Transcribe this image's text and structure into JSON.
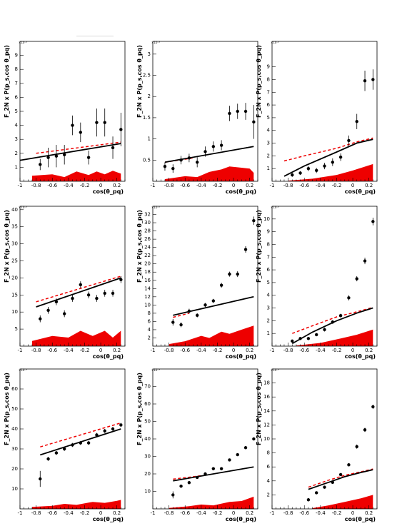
{
  "chart_data": [
    {
      "type": "scatter",
      "xlabel": "cos(θ_pq)",
      "ylabel": "F_2N x P(p_s,cos θ_pq)",
      "y_exponent": "×10⁻³",
      "xlim": [
        -1,
        0.3
      ],
      "ylim": [
        0,
        10
      ],
      "xticks": [
        "-1",
        "-0.8",
        "-0.6",
        "-0.4",
        "-0.2",
        "0",
        "0.2"
      ],
      "yticks": [
        "1",
        "2",
        "3",
        "4",
        "5",
        "6",
        "7",
        "8",
        "9"
      ],
      "data": {
        "x": [
          -0.75,
          -0.65,
          -0.55,
          -0.45,
          -0.35,
          -0.25,
          -0.15,
          -0.05,
          0.05,
          0.15,
          0.25
        ],
        "y": [
          1.2,
          1.7,
          1.8,
          1.9,
          4.0,
          3.5,
          1.7,
          4.2,
          4.2,
          2.4,
          3.7
        ],
        "err": [
          0.4,
          0.7,
          0.8,
          0.7,
          0.7,
          0.7,
          0.5,
          1.0,
          1.0,
          0.8,
          1.2
        ]
      },
      "solid_curve": [
        [
          -1.0,
          1.5
        ],
        [
          0.25,
          2.7
        ]
      ],
      "dashed_curve": [
        [
          -0.8,
          2.0
        ],
        [
          0.25,
          2.8
        ]
      ],
      "band": [
        [
          -0.85,
          0.4
        ],
        [
          -0.6,
          0.5
        ],
        [
          -0.45,
          0.3
        ],
        [
          -0.3,
          0.7
        ],
        [
          -0.15,
          0.45
        ],
        [
          -0.05,
          0.7
        ],
        [
          0.05,
          0.5
        ],
        [
          0.15,
          0.75
        ],
        [
          0.25,
          0.55
        ]
      ]
    },
    {
      "type": "scatter",
      "xlabel": "cos(θ_pq)",
      "ylabel": "F_2N x P(p_s,cos θ_pq)",
      "y_exponent": "×10⁻³",
      "xlim": [
        -1,
        0.3
      ],
      "ylim": [
        0,
        3.3
      ],
      "xticks": [
        "-1",
        "-0.8",
        "-0.6",
        "-0.4",
        "-0.2",
        "0",
        "0.2"
      ],
      "yticks": [
        "0.5",
        "1",
        "1.5",
        "2",
        "2.5",
        "3"
      ],
      "data": {
        "x": [
          -0.85,
          -0.75,
          -0.65,
          -0.55,
          -0.45,
          -0.35,
          -0.25,
          -0.15,
          -0.05,
          0.05,
          0.15,
          0.25
        ],
        "y": [
          0.35,
          0.3,
          0.5,
          0.55,
          0.45,
          0.7,
          0.82,
          0.85,
          1.6,
          1.65,
          1.65,
          1.4
        ],
        "err": [
          0.1,
          0.1,
          0.1,
          0.1,
          0.12,
          0.12,
          0.12,
          0.12,
          0.18,
          0.18,
          0.2,
          0.4
        ]
      },
      "solid_curve": [
        [
          -0.85,
          0.45
        ],
        [
          0.25,
          0.82
        ]
      ],
      "dashed_curve": [
        [
          -0.85,
          0.45
        ],
        [
          -0.5,
          0.55
        ]
      ],
      "band": [
        [
          -0.85,
          0.05
        ],
        [
          -0.6,
          0.12
        ],
        [
          -0.45,
          0.1
        ],
        [
          -0.3,
          0.22
        ],
        [
          -0.15,
          0.28
        ],
        [
          -0.05,
          0.35
        ],
        [
          0.1,
          0.32
        ],
        [
          0.2,
          0.3
        ],
        [
          0.25,
          0.2
        ]
      ]
    },
    {
      "type": "scatter",
      "xlabel": "cos(θ_pq)",
      "ylabel": "F_2N x P(p_s,cos θ_pq)",
      "y_exponent": "×10⁻³",
      "xlim": [
        -1,
        0.3
      ],
      "ylim": [
        0,
        11
      ],
      "xticks": [
        "-1",
        "-0.8",
        "-0.6",
        "-0.4",
        "-0.2",
        "0",
        "0.2"
      ],
      "yticks": [
        "1",
        "2",
        "3",
        "4",
        "5",
        "6",
        "7",
        "8",
        "9"
      ],
      "data": {
        "x": [
          -0.75,
          -0.65,
          -0.55,
          -0.45,
          -0.35,
          -0.25,
          -0.15,
          -0.05,
          0.05,
          0.15,
          0.25
        ],
        "y": [
          0.5,
          0.65,
          1.0,
          0.85,
          1.2,
          1.5,
          1.9,
          3.2,
          4.7,
          7.9,
          8.0
        ],
        "err": [
          0.15,
          0.15,
          0.2,
          0.2,
          0.25,
          0.3,
          0.3,
          0.4,
          0.6,
          0.8,
          0.8
        ]
      },
      "solid_curve": [
        [
          -0.85,
          0.4
        ],
        [
          -0.6,
          1.2
        ],
        [
          -0.2,
          2.3
        ],
        [
          0.05,
          3.0
        ],
        [
          0.25,
          3.3
        ]
      ],
      "dashed_curve": [
        [
          -0.85,
          1.6
        ],
        [
          -0.6,
          2.0
        ],
        [
          -0.2,
          2.6
        ],
        [
          0.05,
          3.1
        ],
        [
          0.25,
          3.4
        ]
      ],
      "band": [
        [
          -0.8,
          0.05
        ],
        [
          -0.5,
          0.2
        ],
        [
          -0.2,
          0.5
        ],
        [
          0.0,
          0.85
        ],
        [
          0.15,
          1.15
        ],
        [
          0.25,
          1.35
        ]
      ]
    },
    {
      "type": "scatter",
      "xlabel": "cos(θ_pq)",
      "ylabel": "F_2N x P(p_s,cos θ_pq)",
      "y_exponent": "×10⁻⁶",
      "xlim": [
        -1,
        0.3
      ],
      "ylim": [
        0,
        41
      ],
      "xticks": [
        "-1",
        "-0.8",
        "-0.6",
        "-0.4",
        "-0.2",
        "0",
        "0.2"
      ],
      "yticks": [
        "5",
        "10",
        "15",
        "20",
        "25",
        "30",
        "35",
        "40"
      ],
      "data": {
        "x": [
          -0.75,
          -0.65,
          -0.55,
          -0.45,
          -0.35,
          -0.25,
          -0.15,
          -0.05,
          0.05,
          0.15,
          0.25
        ],
        "y": [
          8,
          10.5,
          13,
          9.5,
          14,
          18,
          15,
          14,
          15.5,
          15.5,
          19.5
        ],
        "err": [
          1.0,
          1.0,
          1.0,
          1.0,
          1.0,
          1.0,
          1.0,
          1.0,
          1.0,
          1.0,
          1.0
        ]
      },
      "solid_curve": [
        [
          -0.8,
          11.5
        ],
        [
          0.25,
          20
        ]
      ],
      "dashed_curve": [
        [
          -0.8,
          13
        ],
        [
          0.25,
          20.5
        ]
      ],
      "band": [
        [
          -0.85,
          1.5
        ],
        [
          -0.6,
          3
        ],
        [
          -0.4,
          2.5
        ],
        [
          -0.25,
          4.5
        ],
        [
          -0.1,
          3
        ],
        [
          0.05,
          4.5
        ],
        [
          0.15,
          2.5
        ],
        [
          0.25,
          4.5
        ]
      ]
    },
    {
      "type": "scatter",
      "xlabel": "cos(θ_pq)",
      "ylabel": "F_2N x P(p_s,cos θ_pq)",
      "y_exponent": "×10⁻⁶",
      "xlim": [
        -1,
        0.3
      ],
      "ylim": [
        0,
        34
      ],
      "xticks": [
        "-1",
        "-0.8",
        "-0.6",
        "-0.4",
        "-0.2",
        "0",
        "0.2"
      ],
      "yticks": [
        "2",
        "4",
        "6",
        "8",
        "10",
        "12",
        "14",
        "16",
        "18",
        "20",
        "22",
        "24",
        "26",
        "28",
        "30",
        "32"
      ],
      "data": {
        "x": [
          -0.75,
          -0.65,
          -0.55,
          -0.45,
          -0.35,
          -0.25,
          -0.15,
          -0.05,
          0.05,
          0.15,
          0.25
        ],
        "y": [
          5.8,
          5.2,
          8.5,
          7.5,
          10,
          11,
          14.8,
          17.5,
          17.5,
          23.5,
          30.5
        ],
        "err": [
          0.8,
          0.6,
          0.6,
          0.5,
          0.5,
          0.5,
          0.6,
          0.6,
          0.7,
          0.8,
          1.0
        ]
      },
      "solid_curve": [
        [
          -0.75,
          7.5
        ],
        [
          0.25,
          12
        ]
      ],
      "dashed_curve": [
        [
          -0.75,
          7
        ],
        [
          -0.55,
          8
        ]
      ],
      "band": [
        [
          -0.8,
          0.5
        ],
        [
          -0.6,
          1.2
        ],
        [
          -0.4,
          2.5
        ],
        [
          -0.3,
          2
        ],
        [
          -0.15,
          3.5
        ],
        [
          -0.05,
          3
        ],
        [
          0.1,
          4
        ],
        [
          0.25,
          5
        ]
      ]
    },
    {
      "type": "scatter",
      "xlabel": "cos(θ_pq)",
      "ylabel": "F_2N x P(p_s,cos θ_pq)",
      "y_exponent": "×10⁻⁶",
      "xlim": [
        -1,
        0.3
      ],
      "ylim": [
        0,
        11
      ],
      "xticks": [
        "-1",
        "-0.8",
        "-0.6",
        "-0.4",
        "-0.2",
        "0",
        "0.2"
      ],
      "yticks": [
        "1",
        "2",
        "3",
        "4",
        "5",
        "6",
        "7",
        "8",
        "9",
        "10"
      ],
      "data": {
        "x": [
          -0.75,
          -0.65,
          -0.55,
          -0.45,
          -0.35,
          -0.25,
          -0.15,
          -0.05,
          0.05,
          0.15,
          0.25
        ],
        "y": [
          0.4,
          0.6,
          0.6,
          0.9,
          1.3,
          1.9,
          2.4,
          3.8,
          5.3,
          6.7,
          9.8
        ],
        "err": [
          0.1,
          0.1,
          0.1,
          0.12,
          0.15,
          0.15,
          0.15,
          0.2,
          0.2,
          0.25,
          0.3
        ]
      },
      "solid_curve": [
        [
          -0.75,
          0.2
        ],
        [
          -0.5,
          1.1
        ],
        [
          -0.2,
          2.0
        ],
        [
          0.05,
          2.6
        ],
        [
          0.25,
          3.0
        ]
      ],
      "dashed_curve": [
        [
          -0.75,
          1.0
        ],
        [
          -0.5,
          1.6
        ],
        [
          -0.2,
          2.3
        ],
        [
          0.05,
          2.7
        ],
        [
          0.25,
          3.05
        ]
      ],
      "band": [
        [
          -0.7,
          0.05
        ],
        [
          -0.4,
          0.25
        ],
        [
          -0.15,
          0.6
        ],
        [
          0.05,
          0.9
        ],
        [
          0.25,
          1.3
        ]
      ]
    },
    {
      "type": "scatter",
      "xlabel": "cos(θ_pq)",
      "ylabel": "F_2N x P(p_s,cos θ_pq)",
      "y_exponent": "×10⁻⁹",
      "xlim": [
        -1,
        0.3
      ],
      "ylim": [
        0,
        70
      ],
      "xticks": [
        "-1",
        "-0.8",
        "-0.6",
        "-0.4",
        "-0.2",
        "0",
        "0.2"
      ],
      "yticks": [
        "10",
        "20",
        "30",
        "40",
        "50",
        "60"
      ],
      "data": {
        "x": [
          -0.75,
          -0.65,
          -0.55,
          -0.45,
          -0.35,
          -0.25,
          -0.15,
          -0.05,
          0.05,
          0.15,
          0.25
        ],
        "y": [
          15,
          25,
          28,
          30,
          32,
          33,
          33,
          37,
          39,
          40,
          42
        ],
        "err": [
          4,
          1,
          1,
          1,
          1,
          1,
          1,
          1,
          1,
          1,
          1
        ]
      },
      "solid_curve": [
        [
          -0.75,
          27
        ],
        [
          0.25,
          40
        ]
      ],
      "dashed_curve": [
        [
          -0.75,
          31
        ],
        [
          0.25,
          43
        ]
      ],
      "band": [
        [
          -0.85,
          1
        ],
        [
          -0.6,
          1.5
        ],
        [
          -0.45,
          2.5
        ],
        [
          -0.3,
          2
        ],
        [
          -0.1,
          3.5
        ],
        [
          0.05,
          3
        ],
        [
          0.2,
          4
        ],
        [
          0.25,
          4.5
        ]
      ]
    },
    {
      "type": "scatter",
      "xlabel": "cos(θ_pq)",
      "ylabel": "F_2N x P(p_s,cos θ_pq)",
      "y_exponent": "×10⁻⁹",
      "xlim": [
        -1,
        0.3
      ],
      "ylim": [
        0,
        80
      ],
      "xticks": [
        "-1",
        "-0.8",
        "-0.6",
        "-0.4",
        "-0.2",
        "0",
        "0.2"
      ],
      "yticks": [
        "10",
        "20",
        "30",
        "40",
        "50",
        "60",
        "70"
      ],
      "data": {
        "x": [
          -0.75,
          -0.65,
          -0.55,
          -0.45,
          -0.35,
          -0.25,
          -0.15,
          -0.05,
          0.05,
          0.15,
          0.25
        ],
        "y": [
          8,
          13,
          15,
          18,
          20,
          23,
          23,
          28,
          31,
          35,
          40
        ],
        "err": [
          2,
          0.8,
          0.8,
          0.8,
          0.8,
          0.8,
          0.8,
          0.8,
          0.8,
          0.8,
          0.8
        ]
      },
      "solid_curve": [
        [
          -0.75,
          16
        ],
        [
          0.25,
          24
        ]
      ],
      "dashed_curve": [
        [
          -0.75,
          17
        ],
        [
          -0.4,
          19
        ]
      ],
      "band": [
        [
          -0.8,
          0.5
        ],
        [
          -0.55,
          1.5
        ],
        [
          -0.4,
          2.5
        ],
        [
          -0.25,
          2
        ],
        [
          -0.05,
          4
        ],
        [
          0.1,
          4.5
        ],
        [
          0.25,
          7
        ]
      ]
    },
    {
      "type": "scatter",
      "xlabel": "cos(θ_pq)",
      "ylabel": "F_2N x P(p_s,cos θ_pq)",
      "y_exponent": "×10⁻⁹",
      "xlim": [
        -1,
        0.3
      ],
      "ylim": [
        0,
        20
      ],
      "xticks": [
        "-1",
        "-0.8",
        "-0.6",
        "-0.4",
        "-0.2",
        "0",
        "0.2"
      ],
      "yticks": [
        "2",
        "4",
        "6",
        "8",
        "10",
        "12",
        "14",
        "16",
        "18"
      ],
      "data": {
        "x": [
          -0.55,
          -0.45,
          -0.35,
          -0.25,
          -0.15,
          -0.05,
          0.05,
          0.15,
          0.25
        ],
        "y": [
          1.3,
          2.3,
          3.1,
          3.8,
          4.9,
          6.3,
          8.9,
          11.3,
          14.6
        ],
        "err": [
          0.2,
          0.2,
          0.2,
          0.2,
          0.2,
          0.2,
          0.3,
          0.3,
          0.3
        ]
      },
      "solid_curve": [
        [
          -0.55,
          2.8
        ],
        [
          -0.3,
          3.8
        ],
        [
          -0.1,
          4.6
        ],
        [
          0.1,
          5.2
        ],
        [
          0.25,
          5.6
        ]
      ],
      "dashed_curve": [
        [
          -0.55,
          3.1
        ],
        [
          -0.3,
          4.1
        ],
        [
          -0.1,
          4.8
        ],
        [
          0.1,
          5.3
        ],
        [
          0.25,
          5.7
        ]
      ],
      "band": [
        [
          -0.5,
          0.1
        ],
        [
          -0.3,
          0.5
        ],
        [
          -0.1,
          1.0
        ],
        [
          0.1,
          1.5
        ],
        [
          0.25,
          2.0
        ]
      ]
    }
  ]
}
